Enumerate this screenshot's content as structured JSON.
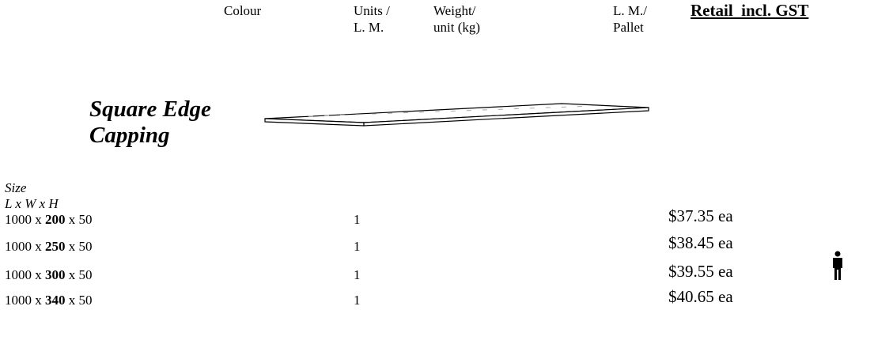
{
  "header": {
    "colour": "Colour",
    "units": [
      "Units /",
      "L. M."
    ],
    "weight": [
      "Weight/",
      "unit (kg)"
    ],
    "pallet": [
      "L. M./",
      "Pallet"
    ],
    "retail": "Retail  incl. GST"
  },
  "product": {
    "title": [
      "Square Edge",
      "Capping"
    ]
  },
  "table": {
    "size_label": [
      "Size",
      "L x W x H"
    ],
    "rows": [
      {
        "size": [
          "1000 x ",
          "200",
          " x 50"
        ],
        "units": "1",
        "price": "$37.35 ea"
      },
      {
        "size": [
          "1000 x ",
          "250",
          " x 50"
        ],
        "units": "1",
        "price": "$38.45 ea"
      },
      {
        "size": [
          "1000 x ",
          "300",
          " x 50"
        ],
        "units": "1",
        "price": "$39.55 ea"
      },
      {
        "size": [
          "1000 x ",
          "340",
          " x 50"
        ],
        "units": "1",
        "price": "$40.65 ea"
      }
    ]
  }
}
